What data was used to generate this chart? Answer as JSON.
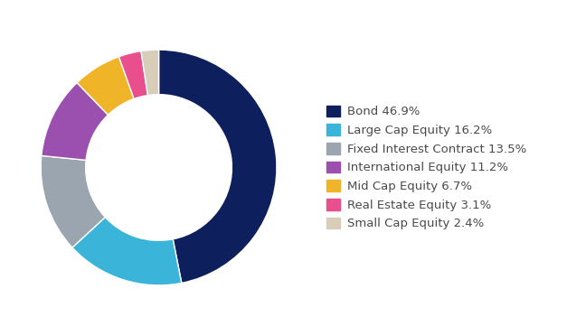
{
  "labels": [
    "Bond 46.9%",
    "Large Cap Equity 16.2%",
    "Fixed Interest Contract 13.5%",
    "International Equity 11.2%",
    "Mid Cap Equity 6.7%",
    "Real Estate Equity 3.1%",
    "Small Cap Equity 2.4%"
  ],
  "values": [
    46.9,
    16.2,
    13.5,
    11.2,
    6.7,
    3.1,
    2.4
  ],
  "colors": [
    "#0d1f5c",
    "#3ab5d9",
    "#9aa5b0",
    "#9b4fae",
    "#f0b429",
    "#e84f8c",
    "#d8cdb8"
  ],
  "background_color": "#ffffff",
  "legend_fontsize": 9.5,
  "donut_width": 0.38
}
